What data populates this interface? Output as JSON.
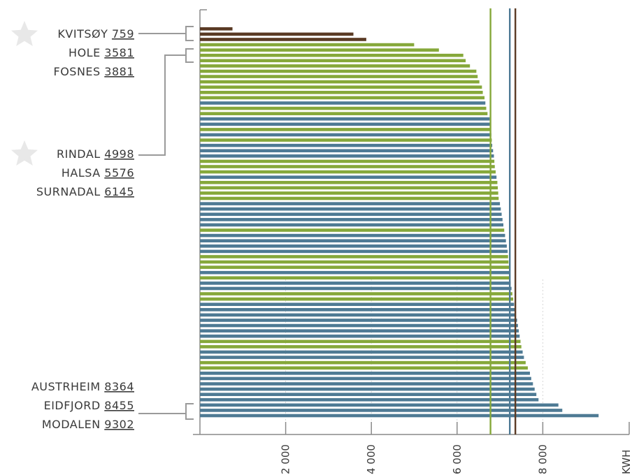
{
  "colors": {
    "green": "#86a83a",
    "blue": "#4e7a94",
    "brown": "#5a3a24",
    "axis": "#8a8a8a",
    "connector": "#9a9a9a",
    "text": "#3a3a3a",
    "star": "#e8e8e8"
  },
  "chart_data": {
    "type": "bar",
    "orientation": "horizontal",
    "xlabel": "KWH",
    "xlim": [
      0,
      10000
    ],
    "x_ticks": [
      {
        "value": 2000,
        "label": "2 000"
      },
      {
        "value": 4000,
        "label": "4 000"
      },
      {
        "value": 6000,
        "label": "6 000"
      },
      {
        "value": 8000,
        "label": "8 000"
      }
    ],
    "reference_lines": [
      {
        "color": "green",
        "value": 6780
      },
      {
        "color": "blue",
        "value": 7230
      },
      {
        "color": "brown",
        "value": 7360
      }
    ],
    "values": [
      759,
      3581,
      3881,
      4998,
      5576,
      6145,
      6200,
      6300,
      6450,
      6480,
      6520,
      6580,
      6600,
      6640,
      6660,
      6680,
      6710,
      6760,
      6780,
      6790,
      6800,
      6810,
      6820,
      6840,
      6860,
      6870,
      6880,
      6900,
      6920,
      6940,
      6950,
      6960,
      6970,
      7000,
      7020,
      7040,
      7060,
      7080,
      7100,
      7120,
      7140,
      7160,
      7180,
      7190,
      7200,
      7210,
      7220,
      7230,
      7250,
      7270,
      7290,
      7310,
      7330,
      7350,
      7370,
      7400,
      7420,
      7440,
      7460,
      7480,
      7500,
      7530,
      7560,
      7600,
      7650,
      7700,
      7730,
      7770,
      7810,
      7850,
      7900,
      8364,
      8455,
      9302
    ],
    "colors": [
      "brown",
      "brown",
      "brown",
      "green",
      "green",
      "green",
      "green",
      "green",
      "green",
      "green",
      "green",
      "green",
      "green",
      "green",
      "blue",
      "green",
      "green",
      "blue",
      "blue",
      "green",
      "blue",
      "green",
      "blue",
      "blue",
      "blue",
      "green",
      "green",
      "green",
      "blue",
      "green",
      "green",
      "green",
      "green",
      "blue",
      "blue",
      "blue",
      "blue",
      "blue",
      "green",
      "blue",
      "blue",
      "blue",
      "blue",
      "green",
      "green",
      "green",
      "blue",
      "green",
      "blue",
      "blue",
      "green",
      "green",
      "blue",
      "blue",
      "blue",
      "blue",
      "blue",
      "blue",
      "blue",
      "green",
      "green",
      "blue",
      "blue",
      "green",
      "green",
      "blue",
      "blue",
      "blue",
      "blue",
      "blue",
      "blue",
      "blue",
      "blue",
      "blue"
    ],
    "callouts": [
      {
        "group": "top",
        "star": true,
        "items": [
          {
            "name": "KVITSØY",
            "value": "759"
          }
        ]
      },
      {
        "group": "top",
        "star": false,
        "items": [
          {
            "name": "HOLE",
            "value": "3581"
          },
          {
            "name": "FOSNES",
            "value": "3881"
          }
        ]
      },
      {
        "group": "second",
        "star": true,
        "items": [
          {
            "name": "RINDAL",
            "value": "4998"
          },
          {
            "name": "HALSA",
            "value": "5576"
          },
          {
            "name": "SURNADAL",
            "value": "6145"
          }
        ]
      },
      {
        "group": "bottom",
        "star": false,
        "items": [
          {
            "name": "AUSTRHEIM",
            "value": "8364"
          },
          {
            "name": "EIDFJORD",
            "value": "8455"
          },
          {
            "name": "MODALEN",
            "value": "9302"
          }
        ]
      }
    ]
  }
}
